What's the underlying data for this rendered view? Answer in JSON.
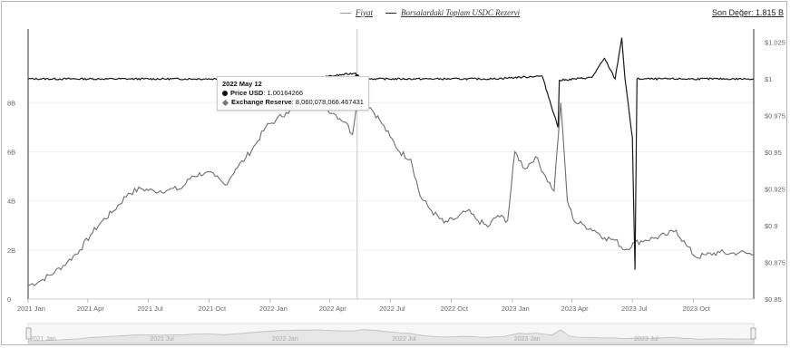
{
  "legend": {
    "price_label": "Fiyat",
    "reserve_label": "Borsalardaki Toplam USDC Rezervi"
  },
  "latest_value": "Son Değer: 1.815 B",
  "tooltip": {
    "date": "2022 May 12",
    "price_label": "Price USD",
    "price_value": "1.00164266",
    "reserve_label": "Exchange Reserve",
    "reserve_value": "8,060,078,066.467431"
  },
  "colors": {
    "price_line": "#1a1a1a",
    "reserve_line": "#6e6e6e",
    "crosshair": "#cccccc",
    "grid": "#f0f0f0"
  },
  "chart_data": {
    "type": "line",
    "title": "",
    "xlabel": "",
    "ylabel": "",
    "x_ticks": [
      "2021 Jan",
      "2021 Apr",
      "2021 Jul",
      "2021 Oct",
      "2022 Jan",
      "2022 Apr",
      "2022 Jul",
      "2022 Oct",
      "2023 Jan",
      "2023 Apr",
      "2023 Jul",
      "2023 Oct"
    ],
    "x_range": [
      "2021-01-01",
      "2023-12-31"
    ],
    "y_left": {
      "ticks": [
        "0",
        "2B",
        "4B",
        "6B",
        "8B"
      ],
      "range": [
        0,
        11
      ]
    },
    "y_right": {
      "ticks": [
        "$0.85",
        "$0.875",
        "$0.9",
        "$0.925",
        "$0.95",
        "$0.975",
        "$1",
        "$1.025"
      ],
      "range": [
        0.85,
        1.034
      ]
    },
    "series": [
      {
        "name": "Borsalardaki Toplam USDC Rezervi",
        "axis": "left",
        "unit": "B",
        "points": [
          [
            "2021-01-01",
            0.55
          ],
          [
            "2021-01-20",
            0.75
          ],
          [
            "2021-02-10",
            1.1
          ],
          [
            "2021-03-01",
            1.5
          ],
          [
            "2021-03-20",
            2.0
          ],
          [
            "2021-04-05",
            2.6
          ],
          [
            "2021-04-20",
            3.1
          ],
          [
            "2021-05-10",
            3.6
          ],
          [
            "2021-06-01",
            4.3
          ],
          [
            "2021-06-20",
            4.5
          ],
          [
            "2021-07-10",
            4.4
          ],
          [
            "2021-08-01",
            4.45
          ],
          [
            "2021-08-20",
            4.5
          ],
          [
            "2021-09-05",
            5.0
          ],
          [
            "2021-09-25",
            5.15
          ],
          [
            "2021-10-10",
            5.0
          ],
          [
            "2021-10-25",
            4.65
          ],
          [
            "2021-11-10",
            5.3
          ],
          [
            "2021-11-25",
            5.75
          ],
          [
            "2021-12-10",
            6.3
          ],
          [
            "2021-12-25",
            7.0
          ],
          [
            "2022-01-10",
            7.3
          ],
          [
            "2022-01-25",
            7.6
          ],
          [
            "2022-02-10",
            7.8
          ],
          [
            "2022-02-25",
            8.0
          ],
          [
            "2022-03-10",
            7.9
          ],
          [
            "2022-03-25",
            7.8
          ],
          [
            "2022-04-10",
            7.5
          ],
          [
            "2022-04-25",
            7.2
          ],
          [
            "2022-05-05",
            6.7
          ],
          [
            "2022-05-12",
            8.06
          ],
          [
            "2022-05-20",
            8.1
          ],
          [
            "2022-06-01",
            7.8
          ],
          [
            "2022-06-15",
            7.3
          ],
          [
            "2022-07-01",
            6.6
          ],
          [
            "2022-07-15",
            6.0
          ],
          [
            "2022-08-01",
            5.7
          ],
          [
            "2022-08-15",
            4.2
          ],
          [
            "2022-09-01",
            3.6
          ],
          [
            "2022-09-20",
            3.1
          ],
          [
            "2022-10-10",
            3.3
          ],
          [
            "2022-10-25",
            3.6
          ],
          [
            "2022-11-10",
            3.2
          ],
          [
            "2022-11-25",
            2.95
          ],
          [
            "2022-12-10",
            3.4
          ],
          [
            "2022-12-25",
            3.2
          ],
          [
            "2023-01-05",
            6.0
          ],
          [
            "2023-01-20",
            5.3
          ],
          [
            "2023-02-05",
            5.8
          ],
          [
            "2023-02-20",
            5.0
          ],
          [
            "2023-03-05",
            4.4
          ],
          [
            "2023-03-15",
            8.0
          ],
          [
            "2023-03-25",
            4.0
          ],
          [
            "2023-04-05",
            3.15
          ],
          [
            "2023-04-20",
            3.0
          ],
          [
            "2023-05-05",
            2.8
          ],
          [
            "2023-05-20",
            2.5
          ],
          [
            "2023-06-05",
            2.4
          ],
          [
            "2023-06-20",
            2.0
          ],
          [
            "2023-07-05",
            2.3
          ],
          [
            "2023-07-20",
            2.4
          ],
          [
            "2023-08-05",
            2.5
          ],
          [
            "2023-08-20",
            2.6
          ],
          [
            "2023-09-05",
            2.8
          ],
          [
            "2023-09-20",
            2.2
          ],
          [
            "2023-10-05",
            1.7
          ],
          [
            "2023-10-20",
            1.8
          ],
          [
            "2023-11-10",
            1.9
          ],
          [
            "2023-11-25",
            1.85
          ],
          [
            "2023-12-10",
            1.9
          ],
          [
            "2023-12-31",
            1.815
          ]
        ]
      },
      {
        "name": "Fiyat",
        "axis": "right",
        "unit": "USD",
        "points": [
          [
            "2021-01-01",
            1.0
          ],
          [
            "2021-06-01",
            1.0
          ],
          [
            "2021-12-01",
            1.0
          ],
          [
            "2022-03-01",
            1.0
          ],
          [
            "2022-05-10",
            1.004
          ],
          [
            "2022-05-12",
            1.0016
          ],
          [
            "2022-06-01",
            1.0
          ],
          [
            "2022-12-01",
            1.0
          ],
          [
            "2023-02-15",
            1.002
          ],
          [
            "2023-03-11",
            0.967
          ],
          [
            "2023-03-13",
            0.999
          ],
          [
            "2023-05-01",
            1.001
          ],
          [
            "2023-05-20",
            1.014
          ],
          [
            "2023-06-05",
            1.0
          ],
          [
            "2023-06-15",
            1.028
          ],
          [
            "2023-06-20",
            1.0
          ],
          [
            "2023-07-01",
            0.96
          ],
          [
            "2023-07-05",
            0.87
          ],
          [
            "2023-07-08",
            1.0
          ],
          [
            "2023-08-01",
            1.0
          ],
          [
            "2023-12-31",
            1.0
          ]
        ]
      }
    ],
    "legend_position": "top-center",
    "grid": false
  },
  "navigator": {
    "labels": [
      "2021 Jan",
      "2021 Jul",
      "2022 Jan",
      "2022 Jul",
      "2023 Jan",
      "2023 Jul"
    ]
  }
}
